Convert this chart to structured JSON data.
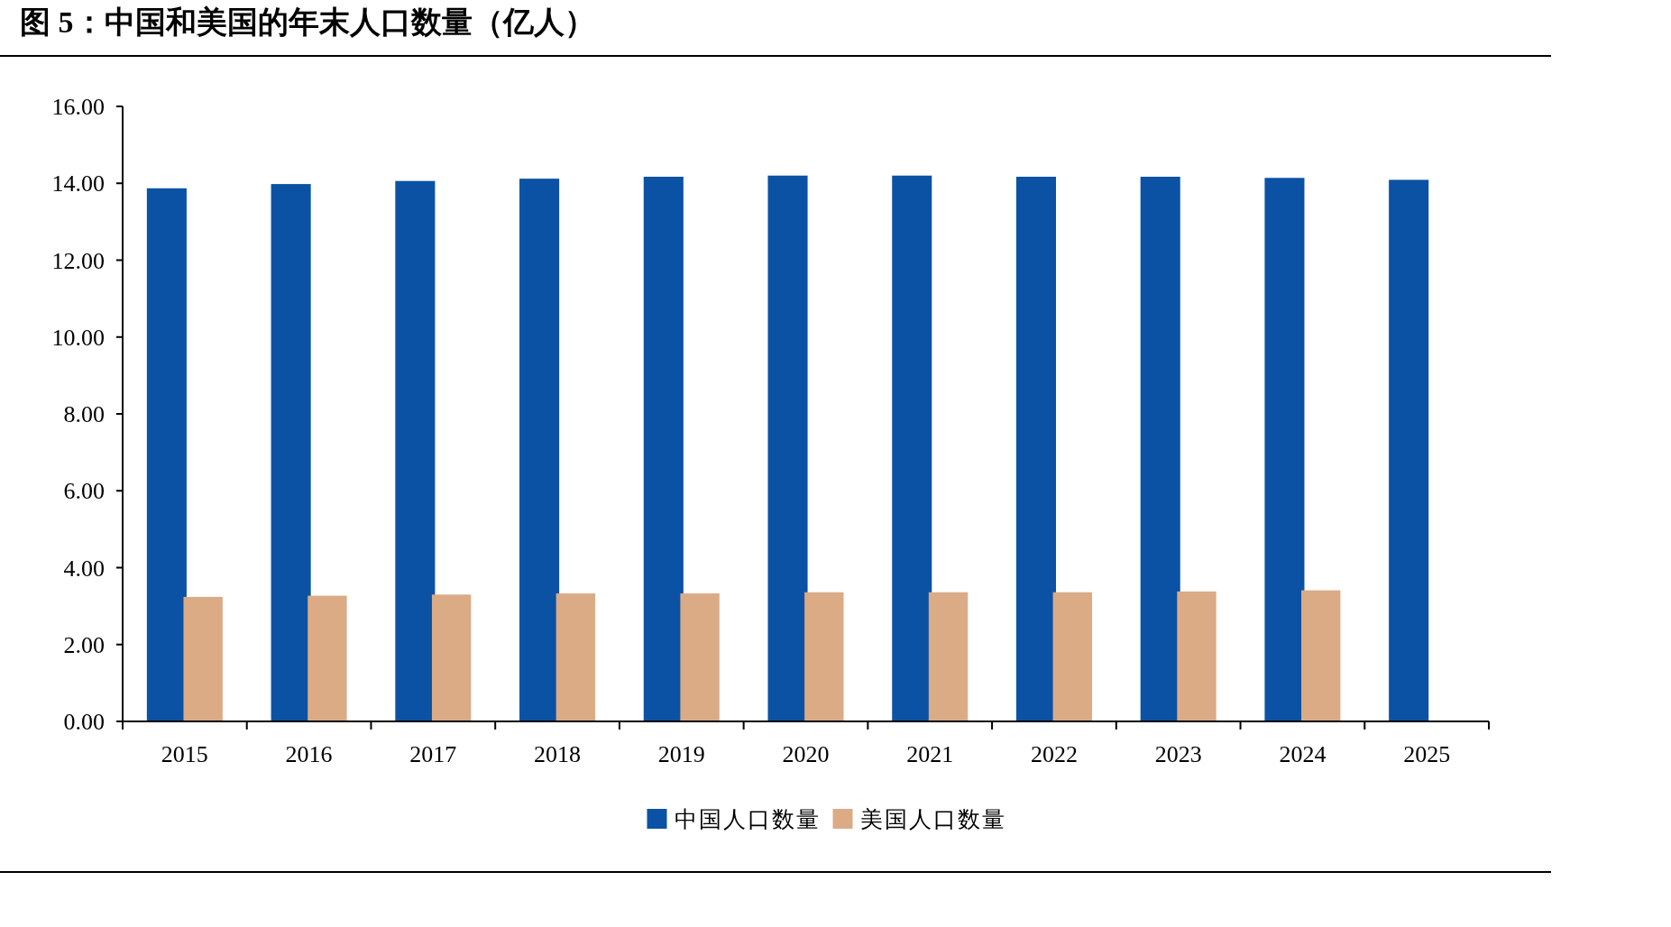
{
  "chart_data": {
    "type": "bar",
    "title": "图 5：中国和美国的年末人口数量（亿人）",
    "categories": [
      "2015",
      "2016",
      "2017",
      "2018",
      "2019",
      "2020",
      "2021",
      "2022",
      "2023",
      "2024",
      "2025"
    ],
    "series": [
      {
        "name": "中国人口数量",
        "color": "#0b52a5",
        "values": [
          13.87,
          13.98,
          14.06,
          14.12,
          14.17,
          14.2,
          14.2,
          14.17,
          14.17,
          14.14,
          14.09
        ]
      },
      {
        "name": "美国人口数量",
        "color": "#dbab86",
        "values": [
          3.24,
          3.27,
          3.3,
          3.33,
          3.33,
          3.36,
          3.36,
          3.36,
          3.38,
          3.41,
          null
        ]
      }
    ],
    "ylim": [
      0,
      16
    ],
    "yticks": [
      {
        "value": 0,
        "label": "0.00"
      },
      {
        "value": 2,
        "label": "2.00"
      },
      {
        "value": 4,
        "label": "4.00"
      },
      {
        "value": 6,
        "label": "6.00"
      },
      {
        "value": 8,
        "label": "8.00"
      },
      {
        "value": 10,
        "label": "10.00"
      },
      {
        "value": 12,
        "label": "12.00"
      },
      {
        "value": 14,
        "label": "14.00"
      },
      {
        "value": 16,
        "label": "16.00"
      }
    ],
    "grid": false,
    "legend": "bottom"
  }
}
